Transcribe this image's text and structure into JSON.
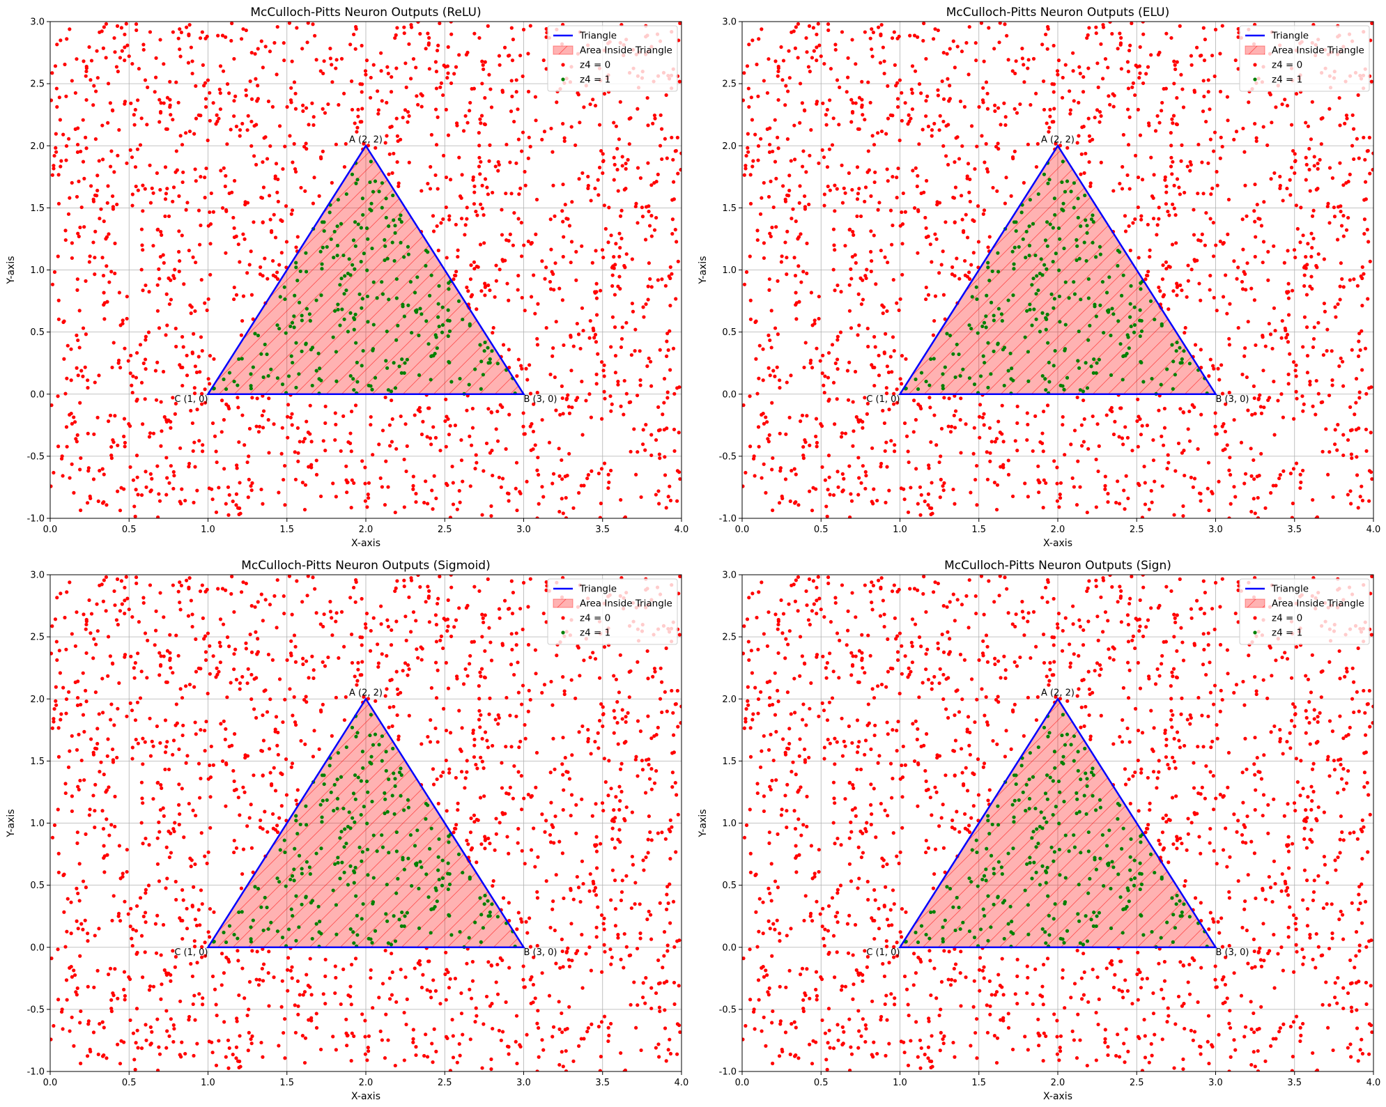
{
  "figure": {
    "colors": {
      "triangle": "#0000ff",
      "fill": "#ff0000",
      "z4_0": "#ff0000",
      "z4_1": "#008000",
      "grid": "#b0b0b0"
    }
  },
  "chart_data": [
    {
      "type": "scatter",
      "title": "McCulloch-Pitts Neuron Outputs (ReLU)",
      "xlabel": "X-axis",
      "ylabel": "Y-axis",
      "xlim": [
        0,
        4
      ],
      "ylim": [
        -1,
        3
      ],
      "xticks": [
        "0.0",
        "0.5",
        "1.0",
        "1.5",
        "2.0",
        "2.5",
        "3.0",
        "3.5",
        "4.0"
      ],
      "yticks": [
        "-1.0",
        "-0.5",
        "0.0",
        "0.5",
        "1.0",
        "1.5",
        "2.0",
        "2.5",
        "3.0"
      ],
      "grid": true,
      "legend_position": "top-right",
      "legend": [
        "Triangle",
        "Area Inside Triangle",
        "z4 = 0",
        "z4 = 1"
      ],
      "triangle": [
        [
          2,
          2
        ],
        [
          3,
          0
        ],
        [
          1,
          0
        ]
      ],
      "vertex_labels": [
        {
          "text": "A (2, 2)",
          "x": 2,
          "y": 2
        },
        {
          "text": "B (3, 0)",
          "x": 3,
          "y": 0
        },
        {
          "text": "C (1, 0)",
          "x": 1,
          "y": 0
        }
      ],
      "points": {
        "n": 2000,
        "seed": 42,
        "x_range": [
          0,
          4
        ],
        "y_range": [
          -1,
          3
        ],
        "rule": "z4 = 1 inside triangle ABC, else 0"
      }
    },
    {
      "type": "scatter",
      "title": "McCulloch-Pitts Neuron Outputs (ELU)",
      "xlabel": "X-axis",
      "ylabel": "Y-axis",
      "xlim": [
        0,
        4
      ],
      "ylim": [
        -1,
        3
      ],
      "xticks": [
        "0.0",
        "0.5",
        "1.0",
        "1.5",
        "2.0",
        "2.5",
        "3.0",
        "3.5",
        "4.0"
      ],
      "yticks": [
        "-1.0",
        "-0.5",
        "0.0",
        "0.5",
        "1.0",
        "1.5",
        "2.0",
        "2.5",
        "3.0"
      ],
      "grid": true,
      "legend_position": "top-right",
      "legend": [
        "Triangle",
        "Area Inside Triangle",
        "z4 = 0",
        "z4 = 1"
      ],
      "triangle": [
        [
          2,
          2
        ],
        [
          3,
          0
        ],
        [
          1,
          0
        ]
      ],
      "vertex_labels": [
        {
          "text": "A (2, 2)",
          "x": 2,
          "y": 2
        },
        {
          "text": "B (3, 0)",
          "x": 3,
          "y": 0
        },
        {
          "text": "C (1, 0)",
          "x": 1,
          "y": 0
        }
      ],
      "points": {
        "n": 2000,
        "seed": 42,
        "x_range": [
          0,
          4
        ],
        "y_range": [
          -1,
          3
        ],
        "rule": "z4 = 1 inside triangle ABC, else 0"
      }
    },
    {
      "type": "scatter",
      "title": "McCulloch-Pitts Neuron Outputs (Sigmoid)",
      "xlabel": "X-axis",
      "ylabel": "Y-axis",
      "xlim": [
        0,
        4
      ],
      "ylim": [
        -1,
        3
      ],
      "xticks": [
        "0.0",
        "0.5",
        "1.0",
        "1.5",
        "2.0",
        "2.5",
        "3.0",
        "3.5",
        "4.0"
      ],
      "yticks": [
        "-1.0",
        "-0.5",
        "0.0",
        "0.5",
        "1.0",
        "1.5",
        "2.0",
        "2.5",
        "3.0"
      ],
      "grid": true,
      "legend_position": "top-right",
      "legend": [
        "Triangle",
        "Area Inside Triangle",
        "z4 = 0",
        "z4 = 1"
      ],
      "triangle": [
        [
          2,
          2
        ],
        [
          3,
          0
        ],
        [
          1,
          0
        ]
      ],
      "vertex_labels": [
        {
          "text": "A (2, 2)",
          "x": 2,
          "y": 2
        },
        {
          "text": "B (3, 0)",
          "x": 3,
          "y": 0
        },
        {
          "text": "C (1, 0)",
          "x": 1,
          "y": 0
        }
      ],
      "points": {
        "n": 2000,
        "seed": 42,
        "x_range": [
          0,
          4
        ],
        "y_range": [
          -1,
          3
        ],
        "rule": "z4 = 1 inside triangle ABC, else 0"
      }
    },
    {
      "type": "scatter",
      "title": "McCulloch-Pitts Neuron Outputs (Sign)",
      "xlabel": "X-axis",
      "ylabel": "Y-axis",
      "xlim": [
        0,
        4
      ],
      "ylim": [
        -1,
        3
      ],
      "xticks": [
        "0.0",
        "0.5",
        "1.0",
        "1.5",
        "2.0",
        "2.5",
        "3.0",
        "3.5",
        "4.0"
      ],
      "yticks": [
        "-1.0",
        "-0.5",
        "0.0",
        "0.5",
        "1.0",
        "1.5",
        "2.0",
        "2.5",
        "3.0"
      ],
      "grid": true,
      "legend_position": "top-right",
      "legend": [
        "Triangle",
        "Area Inside Triangle",
        "z4 = 0",
        "z4 = 1"
      ],
      "triangle": [
        [
          2,
          2
        ],
        [
          3,
          0
        ],
        [
          1,
          0
        ]
      ],
      "vertex_labels": [
        {
          "text": "A (2, 2)",
          "x": 2,
          "y": 2
        },
        {
          "text": "B (3, 0)",
          "x": 3,
          "y": 0
        },
        {
          "text": "C (1, 0)",
          "x": 1,
          "y": 0
        }
      ],
      "points": {
        "n": 2000,
        "seed": 42,
        "x_range": [
          0,
          4
        ],
        "y_range": [
          -1,
          3
        ],
        "rule": "z4 = 1 inside triangle ABC, else 0"
      }
    }
  ]
}
